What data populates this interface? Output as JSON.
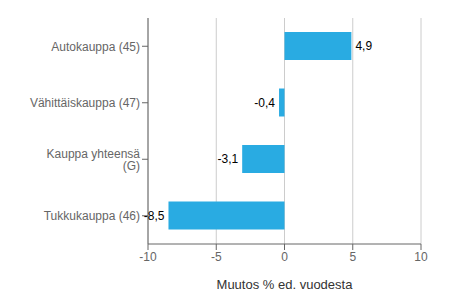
{
  "chart_data": {
    "type": "bar",
    "orientation": "horizontal",
    "categories": [
      "Tukkukauppa (46)",
      "Kauppa yhteensä (G)",
      "Vähittäiskauppa (47)",
      "Autokauppa (45)"
    ],
    "values": [
      -8.5,
      -3.1,
      -0.4,
      4.9
    ],
    "value_labels": [
      "-8,5",
      "-3,1",
      "-0,4",
      "4,9"
    ],
    "data_labels": true,
    "color": "#29abe2",
    "xlim": [
      -10,
      10
    ],
    "xticks": [
      -10,
      -5,
      0,
      5,
      10
    ],
    "xlabel": "Muutos % ed. vuodesta",
    "grid": true
  }
}
